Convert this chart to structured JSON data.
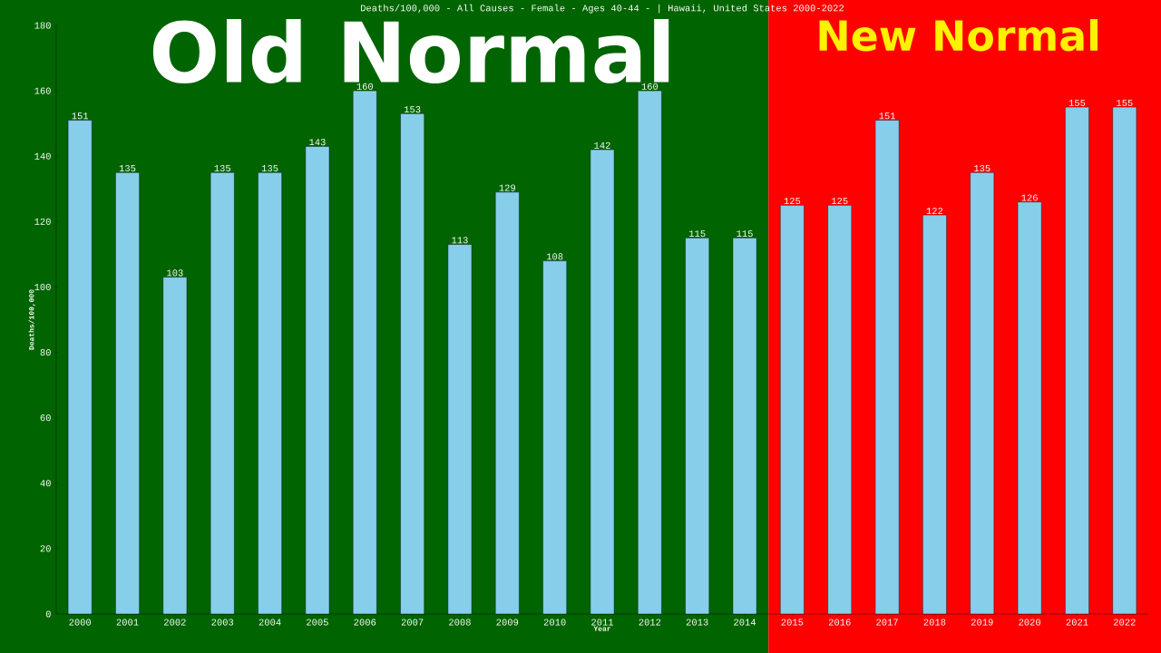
{
  "chart_data": {
    "type": "bar",
    "title": "Deaths/100,000 - All Causes - Female - Ages 40-44 -  | Hawaii, United States 2000-2022",
    "xlabel": "Year",
    "ylabel": "Deaths/100,000",
    "categories": [
      "2000",
      "2001",
      "2002",
      "2003",
      "2004",
      "2005",
      "2006",
      "2007",
      "2008",
      "2009",
      "2010",
      "2011",
      "2012",
      "2013",
      "2014",
      "2015",
      "2016",
      "2017",
      "2018",
      "2019",
      "2020",
      "2021",
      "2022"
    ],
    "values": [
      151,
      135,
      103,
      135,
      135,
      143,
      160,
      153,
      113,
      129,
      108,
      142,
      160,
      115,
      115,
      125,
      125,
      151,
      122,
      135,
      126,
      155,
      155
    ],
    "color": "#87ceeb",
    "ylim": [
      0,
      180
    ],
    "yticks": [
      0,
      20,
      40,
      60,
      80,
      100,
      120,
      140,
      160,
      180
    ],
    "data_labels": true,
    "bands": [
      {
        "axis": "x",
        "from": "2000",
        "to": "2014",
        "label": "Old Normal",
        "color": "#006400"
      },
      {
        "axis": "x",
        "from": "2015",
        "to": "2022",
        "label": "New Normal",
        "color": "#ff0000"
      }
    ]
  }
}
